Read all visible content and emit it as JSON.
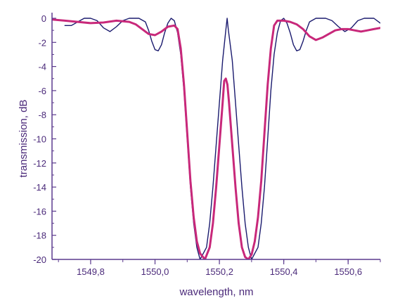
{
  "chart_data": {
    "type": "line",
    "xlabel": "wavelength, nm",
    "ylabel": "transmission, dB",
    "xlim": [
      1549.68,
      1550.7
    ],
    "ylim": [
      -20,
      0
    ],
    "x_ticks": [
      1549.8,
      1550.0,
      1550.2,
      1550.4,
      1550.6
    ],
    "x_tick_labels": [
      "1549,8",
      "1550,0",
      "1550,2",
      "1550,4",
      "1550,6"
    ],
    "y_ticks": [
      0,
      -2,
      -4,
      -6,
      -8,
      -10,
      -12,
      -14,
      -16,
      -18,
      -20
    ],
    "y_tick_labels": [
      "0",
      "-2",
      "-4",
      "-6",
      "-8",
      "-10",
      "-12",
      "-14",
      "-16",
      "-18",
      "-20"
    ],
    "grid": false,
    "legend": "none",
    "colors": {
      "axis": "#5b3a8e",
      "text": "#4b2a7a"
    },
    "series": [
      {
        "color": "#1a1a6e",
        "width": 1.4,
        "points": [
          [
            1549.72,
            -0.6
          ],
          [
            1549.74,
            -0.6
          ],
          [
            1549.76,
            -0.3
          ],
          [
            1549.78,
            0.0
          ],
          [
            1549.8,
            0.0
          ],
          [
            1549.82,
            -0.2
          ],
          [
            1549.84,
            -0.8
          ],
          [
            1549.86,
            -1.1
          ],
          [
            1549.88,
            -0.7
          ],
          [
            1549.9,
            -0.2
          ],
          [
            1549.92,
            0.0
          ],
          [
            1549.95,
            0.0
          ],
          [
            1549.97,
            -0.3
          ],
          [
            1549.98,
            -1.0
          ],
          [
            1549.99,
            -1.9
          ],
          [
            1550.0,
            -2.6
          ],
          [
            1550.01,
            -2.7
          ],
          [
            1550.02,
            -2.2
          ],
          [
            1550.03,
            -1.2
          ],
          [
            1550.04,
            -0.4
          ],
          [
            1550.05,
            0.0
          ],
          [
            1550.06,
            -0.2
          ],
          [
            1550.07,
            -1.2
          ],
          [
            1550.08,
            -3.0
          ],
          [
            1550.09,
            -6.0
          ],
          [
            1550.1,
            -10.0
          ],
          [
            1550.11,
            -14.0
          ],
          [
            1550.12,
            -17.0
          ],
          [
            1550.13,
            -19.0
          ],
          [
            1550.14,
            -20.0
          ],
          [
            1550.16,
            -19.0
          ],
          [
            1550.17,
            -17.0
          ],
          [
            1550.18,
            -14.0
          ],
          [
            1550.19,
            -10.5
          ],
          [
            1550.2,
            -7.0
          ],
          [
            1550.21,
            -3.5
          ],
          [
            1550.22,
            -1.0
          ],
          [
            1550.224,
            0.0
          ],
          [
            1550.228,
            -1.0
          ],
          [
            1550.24,
            -3.5
          ],
          [
            1550.25,
            -7.0
          ],
          [
            1550.26,
            -10.5
          ],
          [
            1550.27,
            -14.0
          ],
          [
            1550.28,
            -17.0
          ],
          [
            1550.29,
            -19.0
          ],
          [
            1550.3,
            -20.0
          ],
          [
            1550.32,
            -19.0
          ],
          [
            1550.33,
            -17.0
          ],
          [
            1550.34,
            -14.0
          ],
          [
            1550.35,
            -10.0
          ],
          [
            1550.36,
            -6.0
          ],
          [
            1550.37,
            -3.0
          ],
          [
            1550.38,
            -1.2
          ],
          [
            1550.39,
            -0.2
          ],
          [
            1550.4,
            0.0
          ],
          [
            1550.41,
            -0.4
          ],
          [
            1550.42,
            -1.2
          ],
          [
            1550.43,
            -2.2
          ],
          [
            1550.44,
            -2.7
          ],
          [
            1550.45,
            -2.6
          ],
          [
            1550.46,
            -1.9
          ],
          [
            1550.47,
            -1.0
          ],
          [
            1550.48,
            -0.3
          ],
          [
            1550.5,
            0.0
          ],
          [
            1550.53,
            0.0
          ],
          [
            1550.55,
            -0.2
          ],
          [
            1550.57,
            -0.7
          ],
          [
            1550.59,
            -1.1
          ],
          [
            1550.61,
            -0.8
          ],
          [
            1550.63,
            -0.2
          ],
          [
            1550.65,
            0.0
          ],
          [
            1550.68,
            0.0
          ],
          [
            1550.7,
            -0.4
          ]
        ]
      },
      {
        "color": "#c8287a",
        "width": 3,
        "points": [
          [
            1549.68,
            -0.1
          ],
          [
            1549.72,
            -0.2
          ],
          [
            1549.76,
            -0.3
          ],
          [
            1549.8,
            -0.4
          ],
          [
            1549.84,
            -0.35
          ],
          [
            1549.88,
            -0.2
          ],
          [
            1549.92,
            -0.3
          ],
          [
            1549.94,
            -0.5
          ],
          [
            1549.96,
            -0.9
          ],
          [
            1549.98,
            -1.3
          ],
          [
            1550.0,
            -1.4
          ],
          [
            1550.02,
            -1.1
          ],
          [
            1550.04,
            -0.7
          ],
          [
            1550.06,
            -0.6
          ],
          [
            1550.07,
            -0.9
          ],
          [
            1550.08,
            -2.5
          ],
          [
            1550.09,
            -5.5
          ],
          [
            1550.1,
            -9.5
          ],
          [
            1550.11,
            -13.5
          ],
          [
            1550.12,
            -16.5
          ],
          [
            1550.13,
            -18.5
          ],
          [
            1550.14,
            -19.5
          ],
          [
            1550.155,
            -20.0
          ],
          [
            1550.17,
            -19.0
          ],
          [
            1550.18,
            -17.0
          ],
          [
            1550.19,
            -14.0
          ],
          [
            1550.2,
            -10.5
          ],
          [
            1550.21,
            -7.0
          ],
          [
            1550.215,
            -5.2
          ],
          [
            1550.22,
            -5.0
          ],
          [
            1550.225,
            -5.5
          ],
          [
            1550.23,
            -7.0
          ],
          [
            1550.24,
            -10.5
          ],
          [
            1550.25,
            -14.0
          ],
          [
            1550.26,
            -17.0
          ],
          [
            1550.27,
            -19.0
          ],
          [
            1550.28,
            -19.8
          ],
          [
            1550.29,
            -20.0
          ],
          [
            1550.3,
            -19.6
          ],
          [
            1550.31,
            -18.5
          ],
          [
            1550.32,
            -16.5
          ],
          [
            1550.33,
            -13.5
          ],
          [
            1550.34,
            -9.5
          ],
          [
            1550.35,
            -5.5
          ],
          [
            1550.36,
            -2.5
          ],
          [
            1550.37,
            -0.6
          ],
          [
            1550.38,
            -0.2
          ],
          [
            1550.4,
            -0.2
          ],
          [
            1550.42,
            -0.3
          ],
          [
            1550.44,
            -0.5
          ],
          [
            1550.46,
            -0.9
          ],
          [
            1550.48,
            -1.5
          ],
          [
            1550.5,
            -1.8
          ],
          [
            1550.52,
            -1.6
          ],
          [
            1550.54,
            -1.3
          ],
          [
            1550.56,
            -1.0
          ],
          [
            1550.58,
            -0.9
          ],
          [
            1550.6,
            -0.9
          ],
          [
            1550.62,
            -1.0
          ],
          [
            1550.64,
            -1.1
          ],
          [
            1550.66,
            -1.0
          ],
          [
            1550.68,
            -0.9
          ],
          [
            1550.7,
            -0.8
          ]
        ]
      }
    ]
  }
}
